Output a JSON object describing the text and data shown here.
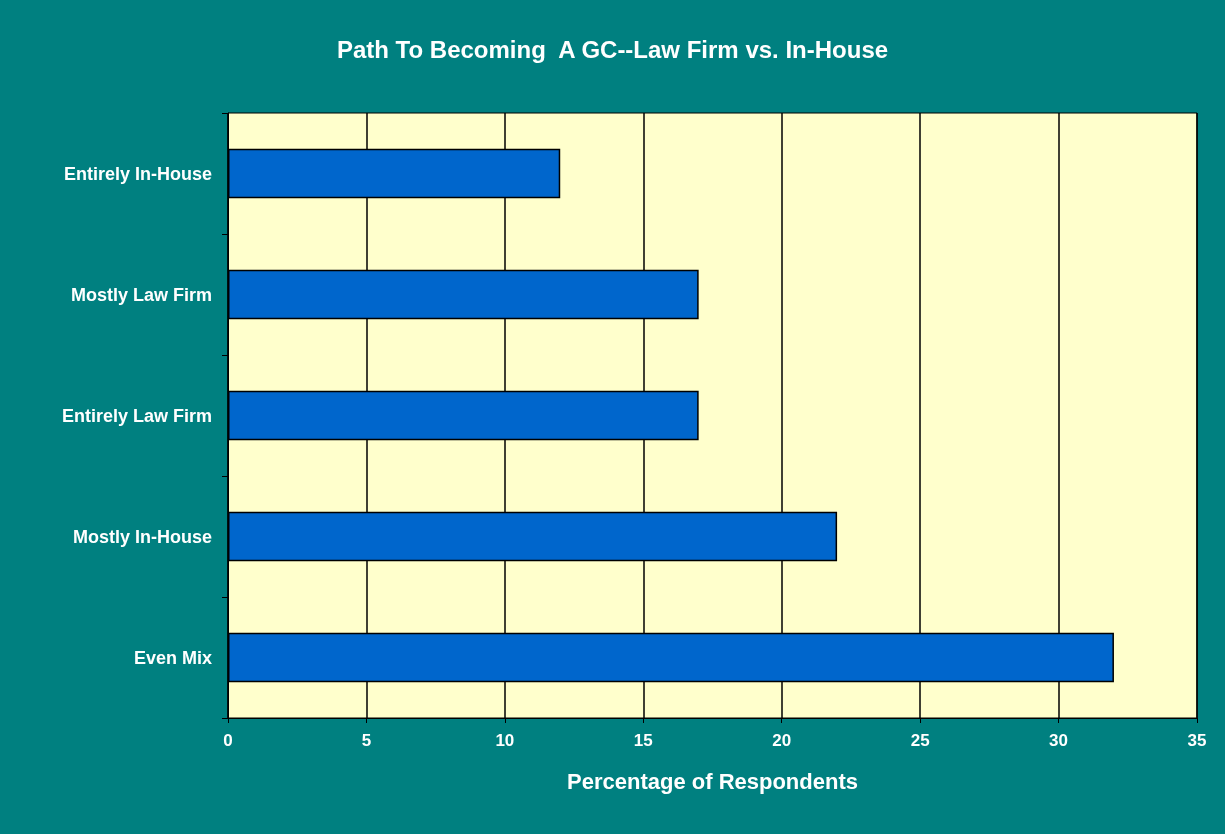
{
  "chart_data": {
    "type": "bar",
    "orientation": "horizontal",
    "title": "Path To Becoming  A GC--Law Firm vs. In-House",
    "xlabel": "Percentage of Respondents",
    "categories": [
      "Entirely In-House",
      "Mostly Law Firm",
      "Entirely Law Firm",
      "Mostly In-House",
      "Even Mix"
    ],
    "values": [
      12,
      17,
      17,
      22,
      32
    ],
    "color": "#0066cc",
    "xlim": [
      0,
      35
    ],
    "xticks": [
      0,
      5,
      10,
      15,
      20,
      25,
      30,
      35
    ],
    "grid": "x"
  }
}
